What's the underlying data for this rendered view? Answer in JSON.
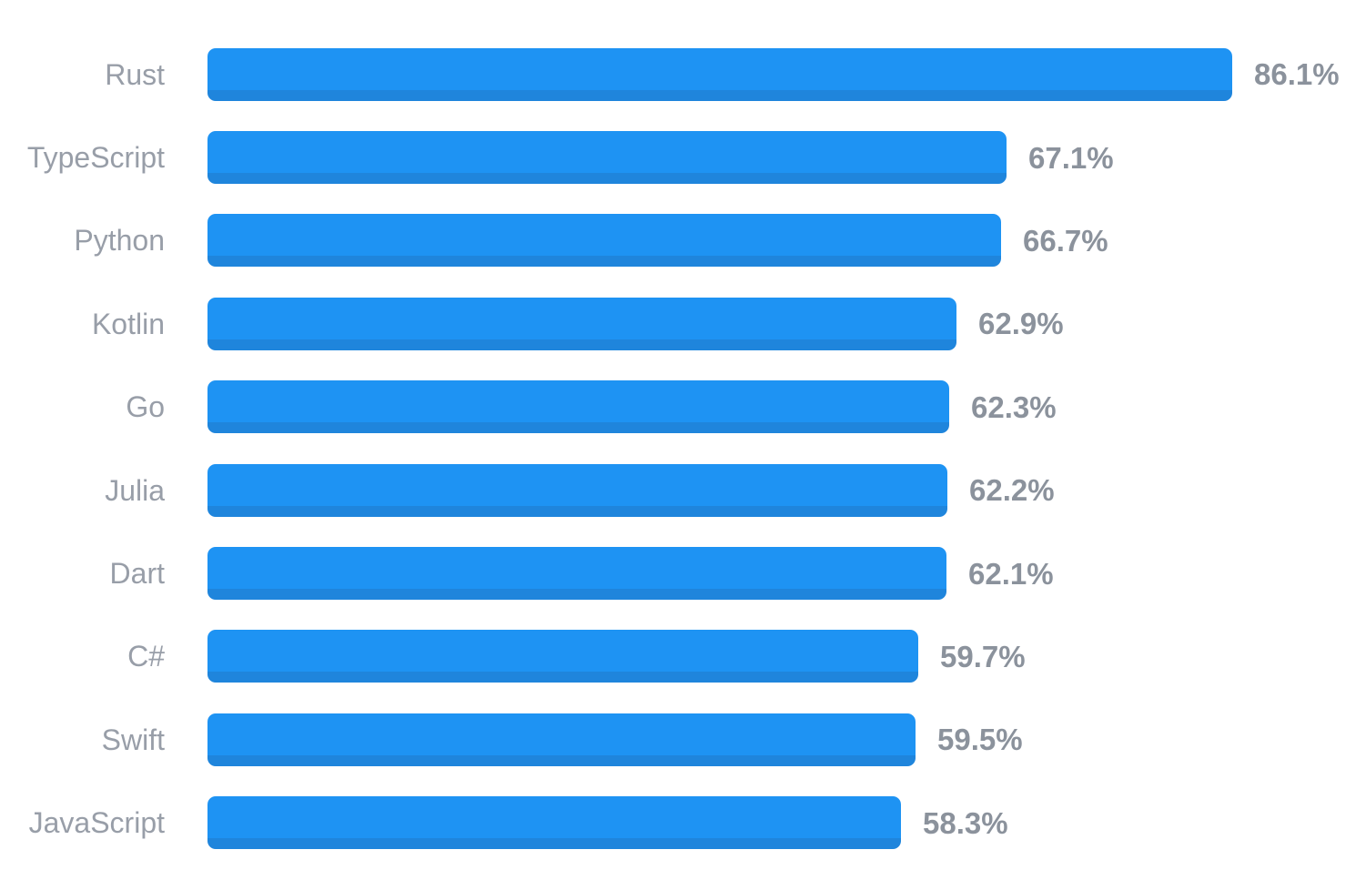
{
  "chart_data": {
    "type": "bar",
    "orientation": "horizontal",
    "title": "",
    "xlabel": "",
    "ylabel": "",
    "grid": false,
    "axes_visible": false,
    "legend": false,
    "xlim": [
      0,
      86.1
    ],
    "categories": [
      "Rust",
      "TypeScript",
      "Python",
      "Kotlin",
      "Go",
      "Julia",
      "Dart",
      "C#",
      "Swift",
      "JavaScript"
    ],
    "values": [
      86.1,
      67.1,
      66.7,
      62.9,
      62.3,
      62.2,
      62.1,
      59.7,
      59.5,
      58.3
    ],
    "value_labels": [
      "86.1%",
      "67.1%",
      "66.7%",
      "62.9%",
      "62.3%",
      "62.2%",
      "62.1%",
      "59.7%",
      "59.5%",
      "58.3%"
    ],
    "colors": {
      "bar": "#1e93f3",
      "bar_bottom_shade": "#1f85dc",
      "category_label": "#989ea8",
      "value_label": "#8b929c",
      "background": "#ffffff"
    }
  }
}
